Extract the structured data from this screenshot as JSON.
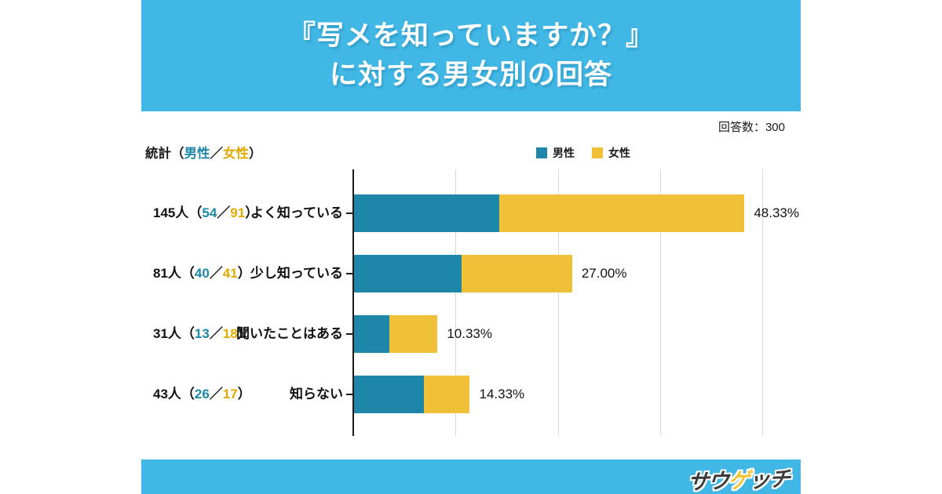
{
  "header": {
    "title_line1": "『写メを知っていますか？』",
    "title_line2": "に対する男女別の回答"
  },
  "meta": {
    "respondents_label": "回答数：300"
  },
  "stats_caption": {
    "prefix": "統計（",
    "male": "男性",
    "sep": "／",
    "female": "女性",
    "close": "）"
  },
  "legend": {
    "male": "男性",
    "female": "女性"
  },
  "rows": [
    {
      "count_prefix": "145人（",
      "male_count": "54",
      "sep": "／",
      "female_count": "91",
      "close": "）",
      "category": "よく知っている",
      "percent": "48.33%"
    },
    {
      "count_prefix": "81人（",
      "male_count": "40",
      "sep": "／",
      "female_count": "41",
      "close": "）",
      "category": "少し知っている",
      "percent": "27.00%"
    },
    {
      "count_prefix": "31人（",
      "male_count": "13",
      "sep": "／",
      "female_count": "18",
      "close": "）",
      "category": "聞いたことはある",
      "percent": "10.33%"
    },
    {
      "count_prefix": "43人（",
      "male_count": "26",
      "sep": "／",
      "female_count": "17",
      "close": "）",
      "category": "知らない",
      "percent": "14.33%"
    }
  ],
  "footer": {
    "logo_text_prefix": "サウ",
    "logo_text_fish": "ゲ",
    "logo_text_suffix": "ッチ"
  },
  "colors": {
    "banner": "#40b7e5",
    "male_bar": "#1e87a9",
    "female_bar": "#f0c138",
    "male_text": "#1d87a8",
    "female_text": "#e2a900",
    "grid": "#d9d9d9",
    "axis": "#1a1a1a"
  },
  "chart_data": {
    "type": "bar",
    "orientation": "horizontal",
    "stacked": true,
    "title": "『写メを知っていますか？』に対する男女別の回答",
    "respondents": 300,
    "categories": [
      "よく知っている",
      "少し知っている",
      "聞いたことはある",
      "知らない"
    ],
    "series": [
      {
        "name": "男性",
        "values": [
          54,
          40,
          13,
          26
        ]
      },
      {
        "name": "女性",
        "values": [
          91,
          41,
          18,
          17
        ]
      }
    ],
    "totals": [
      145,
      81,
      31,
      43
    ],
    "percent_of_total": [
      48.33,
      27.0,
      10.33,
      14.33
    ],
    "xlabel": "",
    "ylabel": "",
    "x_unit": "人",
    "xlim": [
      0,
      166
    ],
    "grid": true,
    "axis_tick_labels_shown": false,
    "legend_position": "top"
  }
}
